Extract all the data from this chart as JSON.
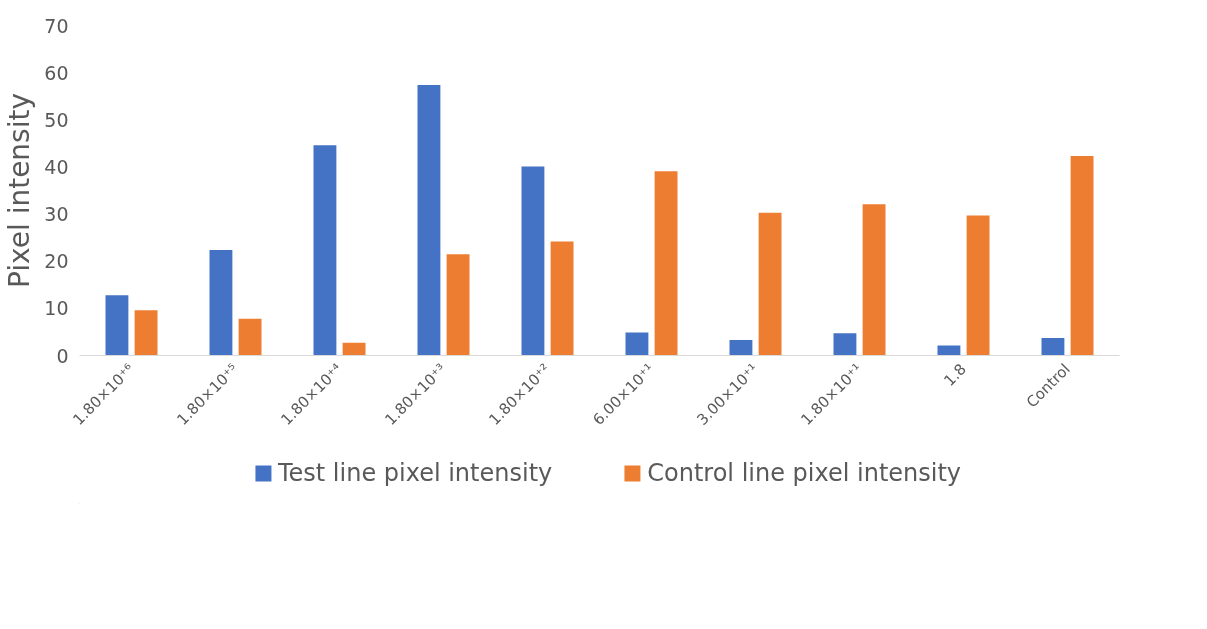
{
  "chart_data": {
    "type": "bar",
    "ylabel": "Pixel intensity",
    "categories": [
      "1.80×10⁺⁶",
      "1.80×10⁺⁵",
      "1.80×10⁺⁴",
      "1.80×10⁺³",
      "1.80×10⁺²",
      "6.00×10⁺¹",
      "3.00×10⁺¹",
      "1.80×10⁺¹",
      "1.8",
      "Control"
    ],
    "series": [
      {
        "name": "Test line pixel intensity",
        "color": "#4472c4",
        "values": [
          12.8,
          22.4,
          44.6,
          57.4,
          40.1,
          4.9,
          3.3,
          4.7,
          2.1,
          3.7
        ]
      },
      {
        "name": "Control line pixel intensity",
        "color": "#ed7d31",
        "values": [
          9.6,
          7.8,
          2.7,
          21.5,
          24.2,
          39.1,
          30.3,
          32.1,
          29.7,
          42.3
        ]
      }
    ],
    "ylim": [
      0,
      70
    ],
    "yticks": [
      0,
      10,
      20,
      30,
      40,
      50,
      60,
      70
    ],
    "grid": false,
    "legend": "bottom"
  }
}
